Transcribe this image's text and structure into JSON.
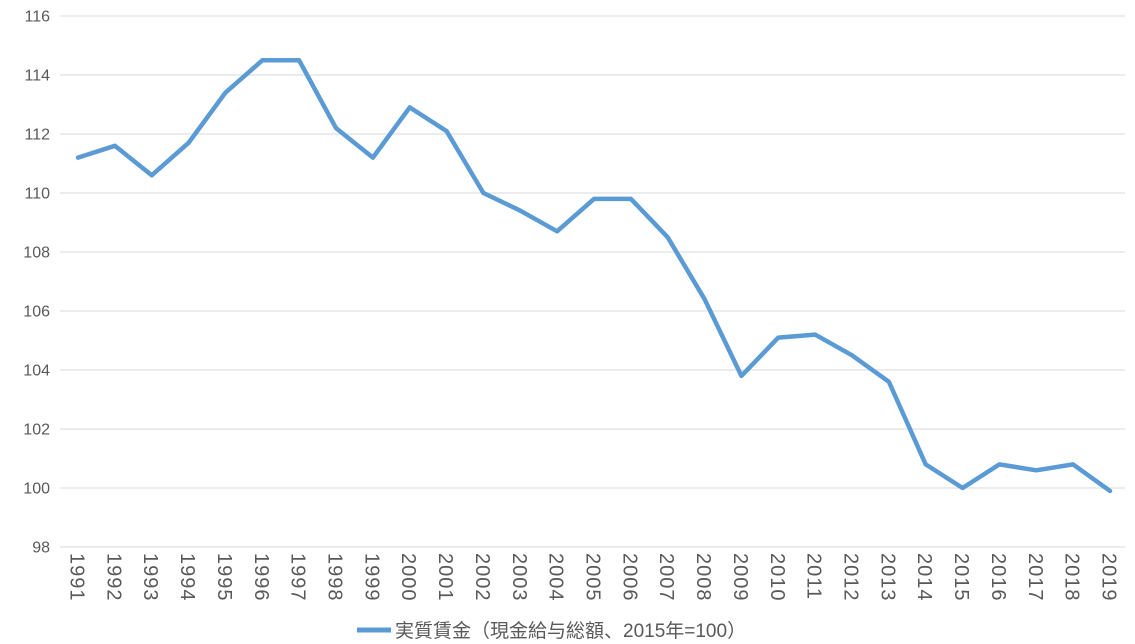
{
  "chart_data": {
    "type": "line",
    "title": "",
    "x": [
      "1991",
      "1992",
      "1993",
      "1994",
      "1995",
      "1996",
      "1997",
      "1998",
      "1999",
      "2000",
      "2001",
      "2002",
      "2003",
      "2004",
      "2005",
      "2006",
      "2007",
      "2008",
      "2009",
      "2010",
      "2011",
      "2012",
      "2013",
      "2014",
      "2015",
      "2016",
      "2017",
      "2018",
      "2019"
    ],
    "series": [
      {
        "name": "実質賃金（現金給与総額、2015年=100）",
        "values": [
          111.2,
          111.6,
          110.6,
          111.7,
          113.4,
          114.5,
          114.5,
          112.2,
          111.2,
          112.9,
          112.1,
          110.0,
          109.4,
          108.7,
          109.8,
          109.8,
          108.5,
          106.4,
          103.8,
          105.1,
          105.2,
          104.5,
          103.6,
          100.8,
          100.0,
          100.8,
          100.6,
          100.8,
          99.9
        ]
      }
    ],
    "xlabel": "",
    "ylabel": "",
    "ylim": [
      98,
      116
    ],
    "yticks": [
      116,
      114,
      112,
      110,
      108,
      106,
      104,
      102,
      100,
      98
    ],
    "grid": "horizontal",
    "legend_position": "bottom-center",
    "colors": {
      "line": "#5B9BD5",
      "gridline": "#D9D9D9",
      "tick_text": "#595959",
      "background": "#FFFFFF"
    }
  },
  "legend": {
    "marker": "line-marker",
    "label": "実質賃金（現金給与総額、2015年=100）"
  }
}
